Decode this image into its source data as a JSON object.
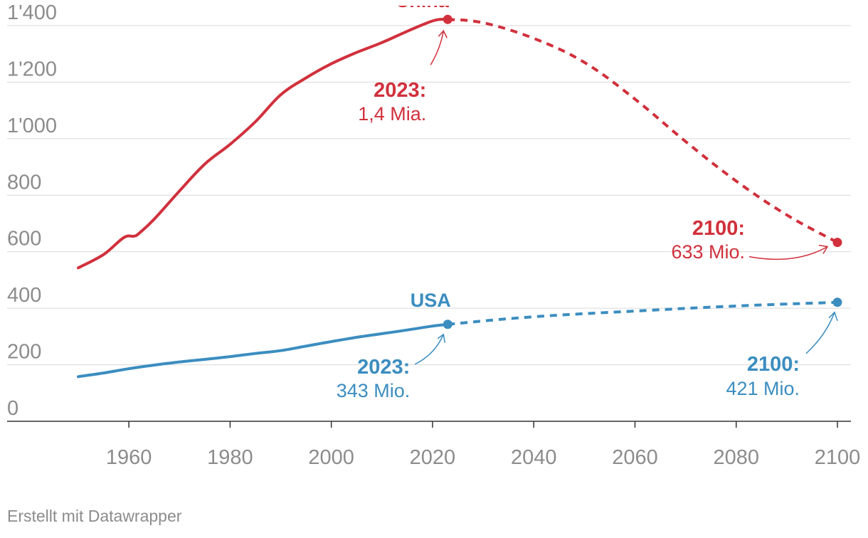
{
  "chart_data": {
    "type": "line",
    "x_domain": [
      1950,
      2100
    ],
    "ylim": [
      0,
      1400
    ],
    "y_ticks": [
      {
        "value": 0,
        "label": "0"
      },
      {
        "value": 200,
        "label": "200"
      },
      {
        "value": 400,
        "label": "400"
      },
      {
        "value": 600,
        "label": "600"
      },
      {
        "value": 800,
        "label": "800"
      },
      {
        "value": 1000,
        "label": "1'000"
      },
      {
        "value": 1200,
        "label": "1'200"
      },
      {
        "value": 1400,
        "label": "1'400"
      }
    ],
    "x_ticks": [
      {
        "value": 1960,
        "label": "1960"
      },
      {
        "value": 1980,
        "label": "1980"
      },
      {
        "value": 2000,
        "label": "2000"
      },
      {
        "value": 2020,
        "label": "2020"
      },
      {
        "value": 2040,
        "label": "2040"
      },
      {
        "value": 2060,
        "label": "2060"
      },
      {
        "value": 2080,
        "label": "2080"
      },
      {
        "value": 2100,
        "label": "2100"
      }
    ],
    "colors": {
      "china": "#d1303c",
      "usa": "#3b8dc0",
      "grid": "#d9d9d9",
      "axis": "#333333",
      "tick_label": "#8c8c8c"
    },
    "series": [
      {
        "id": "china",
        "name": "China",
        "historical": [
          [
            1950,
            543
          ],
          [
            1955,
            590
          ],
          [
            1959,
            650
          ],
          [
            1961,
            655
          ],
          [
            1962,
            665
          ],
          [
            1965,
            715
          ],
          [
            1970,
            815
          ],
          [
            1975,
            910
          ],
          [
            1980,
            980
          ],
          [
            1985,
            1060
          ],
          [
            1990,
            1155
          ],
          [
            1995,
            1215
          ],
          [
            2000,
            1265
          ],
          [
            2005,
            1305
          ],
          [
            2010,
            1340
          ],
          [
            2015,
            1380
          ],
          [
            2019,
            1410
          ],
          [
            2021,
            1421
          ],
          [
            2023,
            1422
          ]
        ],
        "projected": [
          [
            2023,
            1422
          ],
          [
            2030,
            1410
          ],
          [
            2040,
            1355
          ],
          [
            2050,
            1270
          ],
          [
            2060,
            1140
          ],
          [
            2070,
            990
          ],
          [
            2080,
            850
          ],
          [
            2090,
            730
          ],
          [
            2100,
            633
          ]
        ],
        "endpoints": [
          [
            2023,
            1422
          ],
          [
            2100,
            633
          ]
        ]
      },
      {
        "id": "usa",
        "name": "USA",
        "historical": [
          [
            1950,
            158
          ],
          [
            1955,
            171
          ],
          [
            1960,
            186
          ],
          [
            1965,
            199
          ],
          [
            1970,
            210
          ],
          [
            1975,
            219
          ],
          [
            1980,
            229
          ],
          [
            1985,
            240
          ],
          [
            1990,
            250
          ],
          [
            1995,
            266
          ],
          [
            2000,
            282
          ],
          [
            2005,
            297
          ],
          [
            2010,
            310
          ],
          [
            2015,
            323
          ],
          [
            2020,
            337
          ],
          [
            2023,
            343
          ]
        ],
        "projected": [
          [
            2023,
            343
          ],
          [
            2040,
            370
          ],
          [
            2060,
            390
          ],
          [
            2080,
            408
          ],
          [
            2100,
            421
          ]
        ],
        "endpoints": [
          [
            2023,
            343
          ],
          [
            2100,
            421
          ]
        ]
      }
    ],
    "annotations": {
      "china_label": "China",
      "usa_label": "USA",
      "china_2023_year": "2023:",
      "china_2023_value": "1,4 Mia.",
      "china_2100_year": "2100:",
      "china_2100_value": "633 Mio.",
      "usa_2023_year": "2023:",
      "usa_2023_value": "343 Mio.",
      "usa_2100_year": "2100:",
      "usa_2100_value": "421 Mio."
    }
  },
  "footer": {
    "credit": "Erstellt mit Datawrapper"
  }
}
